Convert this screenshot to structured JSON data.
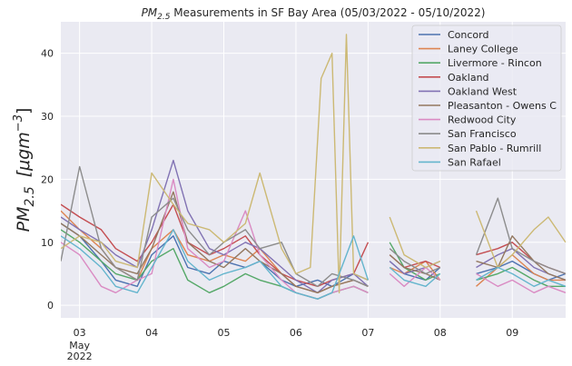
{
  "chart_data": {
    "type": "line",
    "title_main": "PM",
    "title_sub": "2.5",
    "title_rest": " Measurements in SF Bay Area (05/03/2022 - 05/10/2022)",
    "ylabel_main": "PM",
    "ylabel_sub": "2.5",
    "ylabel_units": "[μgm",
    "ylabel_exp": "−3",
    "ylabel_close": "]",
    "xlabel": "",
    "ylim": [
      -2,
      45
    ],
    "yticks": [
      0,
      10,
      20,
      30,
      40
    ],
    "xlim": [
      -0.26,
      6.74
    ],
    "xticks": [
      {
        "x": 0,
        "label": "03",
        "sub1": "May",
        "sub2": "2022"
      },
      {
        "x": 1,
        "label": "04"
      },
      {
        "x": 2,
        "label": "05"
      },
      {
        "x": 3,
        "label": "06"
      },
      {
        "x": 4,
        "label": "07"
      },
      {
        "x": 5,
        "label": "08"
      },
      {
        "x": 6,
        "label": "09"
      }
    ],
    "grid": true,
    "background": "#eaeaf2",
    "legend_position": "upper right",
    "series": [
      {
        "name": "Concord",
        "color": "#4c72b0",
        "x": [
          -0.26,
          0.0,
          0.3,
          0.5,
          0.8,
          1.0,
          1.3,
          1.5,
          1.8,
          2.0,
          2.3,
          2.5,
          2.8,
          3.0,
          3.3,
          3.5,
          3.8,
          4.0,
          4.15,
          4.3,
          4.5,
          4.8,
          5.0,
          5.2,
          5.5,
          5.8,
          6.0,
          6.3,
          6.5,
          6.74
        ],
        "y": [
          13,
          11,
          7,
          4,
          3,
          8,
          11,
          6,
          5,
          7,
          6,
          7,
          4,
          3,
          4,
          3,
          5,
          4,
          null,
          7,
          5,
          4,
          6,
          null,
          5,
          6,
          7,
          5,
          4,
          5
        ]
      },
      {
        "name": "Laney College",
        "color": "#dd8452",
        "x": [
          -0.26,
          0.0,
          0.3,
          0.5,
          0.8,
          1.0,
          1.3,
          1.5,
          1.8,
          2.0,
          2.3,
          2.5,
          2.8,
          3.0,
          3.3,
          3.5,
          3.8,
          4.0,
          4.15,
          4.3,
          4.5,
          4.8,
          5.0,
          5.2,
          5.5,
          5.8,
          6.0,
          6.3,
          6.5,
          6.74
        ],
        "y": [
          15,
          12,
          9,
          6,
          4,
          9,
          12,
          8,
          7,
          8,
          7,
          9,
          5,
          3,
          2,
          3,
          4,
          3,
          null,
          6,
          5,
          7,
          4,
          null,
          3,
          6,
          8,
          5,
          4,
          4
        ]
      },
      {
        "name": "Livermore - Rincon",
        "color": "#55a868",
        "x": [
          -0.26,
          0.0,
          0.3,
          0.5,
          0.8,
          1.0,
          1.3,
          1.5,
          1.8,
          2.0,
          2.3,
          2.5,
          2.8,
          3.0,
          3.3,
          3.5,
          3.8,
          4.0,
          4.15,
          4.3,
          4.5,
          4.8,
          5.0,
          5.2,
          5.5,
          5.8,
          6.0,
          6.3,
          6.5,
          6.74
        ],
        "y": [
          12,
          10,
          7,
          5,
          4,
          7,
          9,
          4,
          2,
          3,
          5,
          4,
          3,
          2,
          1,
          2,
          3,
          2,
          null,
          10,
          6,
          4,
          5,
          null,
          4,
          5,
          6,
          4,
          3,
          3
        ]
      },
      {
        "name": "Oakland",
        "color": "#c44e52",
        "x": [
          -0.26,
          0.0,
          0.3,
          0.5,
          0.8,
          1.0,
          1.3,
          1.5,
          1.8,
          2.0,
          2.3,
          2.5,
          2.8,
          3.0,
          3.3,
          3.5,
          3.8,
          4.0,
          4.15,
          4.3,
          4.5,
          4.8,
          5.0,
          5.2,
          5.5,
          5.8,
          6.0,
          6.3,
          6.5,
          6.74
        ],
        "y": [
          16,
          14,
          12,
          9,
          7,
          10,
          16,
          10,
          8,
          9,
          11,
          8,
          5,
          4,
          3,
          4,
          5,
          10,
          null,
          8,
          6,
          7,
          6,
          null,
          8,
          9,
          10,
          7,
          6,
          5
        ]
      },
      {
        "name": "Oakland West",
        "color": "#8172b3",
        "x": [
          -0.26,
          0.0,
          0.3,
          0.5,
          0.8,
          1.0,
          1.3,
          1.5,
          1.8,
          2.0,
          2.3,
          2.5,
          2.8,
          3.0,
          3.3,
          3.5,
          3.8,
          4.0,
          4.15,
          4.3,
          4.5,
          4.8,
          5.0,
          5.2,
          5.5,
          5.8,
          6.0,
          6.3,
          6.5,
          6.74
        ],
        "y": [
          14,
          12,
          10,
          8,
          6,
          12,
          23,
          15,
          9,
          8,
          10,
          9,
          6,
          4,
          2,
          4,
          5,
          3,
          null,
          7,
          5,
          6,
          7,
          null,
          6,
          8,
          9,
          6,
          5,
          4
        ]
      },
      {
        "name": "Pleasanton - Owens C",
        "color": "#937860",
        "x": [
          -0.26,
          0.0,
          0.3,
          0.5,
          0.8,
          1.0,
          1.3,
          1.5,
          1.8,
          2.0,
          2.3,
          2.5,
          2.8,
          3.0,
          3.3,
          3.5,
          3.8,
          4.0,
          4.15,
          4.3,
          4.5,
          4.8,
          5.0,
          5.2,
          5.5,
          5.8,
          6.0,
          6.3,
          6.5,
          6.74
        ],
        "y": [
          13,
          11,
          8,
          6,
          5,
          9,
          18,
          10,
          7,
          6,
          9,
          7,
          5,
          3,
          2,
          3,
          4,
          3,
          null,
          8,
          6,
          5,
          4,
          null,
          7,
          6,
          11,
          7,
          5,
          4
        ]
      },
      {
        "name": "Redwood City",
        "color": "#da8bc3",
        "x": [
          -0.26,
          0.0,
          0.3,
          0.5,
          0.8,
          1.0,
          1.3,
          1.5,
          1.8,
          2.0,
          2.3,
          2.5,
          2.8,
          3.0,
          3.3,
          3.5,
          3.8,
          4.0,
          4.15,
          4.3,
          4.5,
          4.8,
          5.0,
          5.2,
          5.5,
          5.8,
          6.0,
          6.3,
          6.5,
          6.74
        ],
        "y": [
          10,
          8,
          3,
          2,
          4,
          5,
          20,
          9,
          6,
          7,
          15,
          8,
          4,
          2,
          1,
          2,
          3,
          2,
          null,
          5,
          3,
          6,
          4,
          null,
          5,
          3,
          4,
          2,
          3,
          2
        ]
      },
      {
        "name": "San Francisco",
        "color": "#8c8c8c",
        "x": [
          -0.26,
          0.0,
          0.3,
          0.5,
          0.8,
          1.0,
          1.3,
          1.5,
          1.8,
          2.0,
          2.3,
          2.5,
          2.8,
          3.0,
          3.3,
          3.5,
          3.8,
          4.0,
          4.15,
          4.3,
          4.5,
          4.8,
          5.0,
          5.2,
          5.5,
          5.8,
          6.0,
          6.3,
          6.5,
          6.74
        ],
        "y": [
          7,
          22,
          9,
          6,
          4,
          14,
          17,
          12,
          8,
          10,
          12,
          9,
          10,
          5,
          3,
          5,
          4,
          3,
          null,
          9,
          7,
          5,
          6,
          null,
          8,
          17,
          9,
          7,
          6,
          5
        ]
      },
      {
        "name": "San Pablo - Rumrill",
        "color": "#ccb974",
        "x": [
          -0.26,
          0.0,
          0.3,
          0.5,
          0.8,
          1.0,
          1.3,
          1.5,
          1.8,
          2.0,
          2.3,
          2.5,
          2.8,
          3.0,
          3.2,
          3.35,
          3.5,
          3.6,
          3.7,
          3.8,
          4.0,
          4.15,
          4.3,
          4.5,
          4.8,
          5.0,
          5.2,
          5.5,
          5.8,
          6.0,
          6.3,
          6.5,
          6.74
        ],
        "y": [
          9,
          11,
          10,
          7,
          6,
          21,
          16,
          13,
          12,
          10,
          13,
          21,
          9,
          5,
          6,
          36,
          40,
          2,
          43,
          5,
          4,
          null,
          14,
          8,
          6,
          7,
          null,
          15,
          6,
          8,
          12,
          14,
          10
        ]
      },
      {
        "name": "San Rafael",
        "color": "#64b5cd",
        "x": [
          -0.26,
          0.0,
          0.3,
          0.5,
          0.8,
          1.0,
          1.3,
          1.5,
          1.8,
          2.0,
          2.3,
          2.5,
          2.8,
          3.0,
          3.3,
          3.5,
          3.8,
          4.0,
          4.15,
          4.3,
          4.5,
          4.8,
          5.0,
          5.2,
          5.5,
          5.8,
          6.0,
          6.3,
          6.5,
          6.74
        ],
        "y": [
          11,
          9,
          6,
          3,
          2,
          6,
          12,
          7,
          4,
          5,
          6,
          7,
          3,
          2,
          1,
          2,
          11,
          4,
          null,
          6,
          4,
          3,
          5,
          null,
          4,
          6,
          5,
          3,
          4,
          3
        ]
      }
    ]
  }
}
